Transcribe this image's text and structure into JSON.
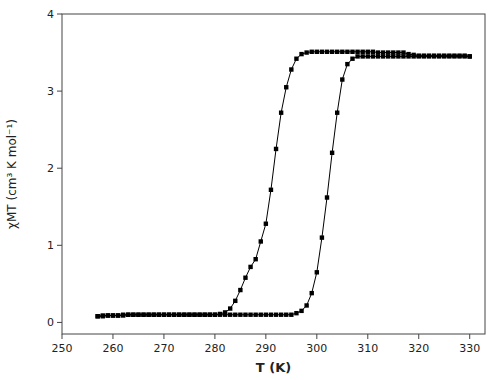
{
  "chart_data": {
    "type": "line",
    "title": "",
    "xlabel": "T (K)",
    "ylabel": "χMT (cm³ K mol⁻¹)",
    "xlim": [
      250,
      333
    ],
    "ylim": [
      -0.15,
      4.0
    ],
    "xticks": [
      250,
      260,
      270,
      280,
      290,
      300,
      310,
      320,
      330
    ],
    "yticks": [
      0,
      1,
      2,
      3,
      4
    ],
    "grid": false,
    "series": [
      {
        "color": "#000000",
        "marker": "square",
        "x": [
          257,
          258,
          259,
          260,
          261,
          262,
          263,
          264,
          265,
          266,
          267,
          268,
          269,
          270,
          271,
          272,
          273,
          274,
          275,
          276,
          277,
          278,
          279,
          280,
          281,
          282,
          283,
          284,
          285,
          286,
          287,
          288,
          289,
          290,
          291,
          292,
          293,
          294,
          295,
          296,
          297,
          298,
          299,
          300,
          301,
          302,
          303,
          304,
          305,
          306,
          307,
          308,
          309,
          310,
          311,
          312,
          313,
          314,
          315,
          316,
          317,
          318,
          319,
          320,
          321,
          322,
          323,
          324,
          325,
          326,
          327,
          328,
          329,
          330
        ],
        "values": [
          0.08,
          0.09,
          0.09,
          0.09,
          0.09,
          0.1,
          0.1,
          0.1,
          0.1,
          0.1,
          0.1,
          0.1,
          0.1,
          0.1,
          0.1,
          0.1,
          0.1,
          0.1,
          0.1,
          0.1,
          0.1,
          0.1,
          0.1,
          0.1,
          0.11,
          0.13,
          0.18,
          0.28,
          0.42,
          0.58,
          0.72,
          0.82,
          1.05,
          1.28,
          1.72,
          2.25,
          2.72,
          3.05,
          3.28,
          3.42,
          3.48,
          3.5,
          3.51,
          3.51,
          3.51,
          3.51,
          3.51,
          3.51,
          3.51,
          3.51,
          3.51,
          3.51,
          3.51,
          3.51,
          3.51,
          3.5,
          3.5,
          3.5,
          3.5,
          3.5,
          3.5,
          3.48,
          3.47,
          3.46,
          3.46,
          3.46,
          3.46,
          3.46,
          3.46,
          3.46,
          3.46,
          3.46,
          3.46,
          3.45
        ]
      },
      {
        "color": "#000000",
        "marker": "square",
        "x": [
          330,
          329,
          328,
          327,
          326,
          325,
          324,
          323,
          322,
          321,
          320,
          319,
          318,
          317,
          316,
          315,
          314,
          313,
          312,
          311,
          310,
          309,
          308,
          307,
          306,
          305,
          304,
          303,
          302,
          301,
          300,
          299,
          298,
          297,
          296,
          295,
          294,
          293,
          292,
          291,
          290,
          289,
          288,
          287,
          286,
          285,
          284,
          283,
          282,
          281,
          280,
          279,
          278,
          277,
          276,
          275,
          274,
          273,
          272,
          271,
          270,
          269,
          268,
          267,
          266,
          265,
          264,
          263,
          262,
          261,
          260,
          259,
          258,
          257
        ],
        "values": [
          3.45,
          3.45,
          3.45,
          3.45,
          3.45,
          3.45,
          3.45,
          3.45,
          3.45,
          3.45,
          3.45,
          3.45,
          3.45,
          3.45,
          3.45,
          3.45,
          3.45,
          3.45,
          3.45,
          3.45,
          3.45,
          3.45,
          3.45,
          3.42,
          3.35,
          3.15,
          2.72,
          2.2,
          1.62,
          1.1,
          0.65,
          0.38,
          0.22,
          0.15,
          0.12,
          0.1,
          0.1,
          0.1,
          0.1,
          0.1,
          0.1,
          0.1,
          0.1,
          0.1,
          0.1,
          0.1,
          0.1,
          0.1,
          0.1,
          0.1,
          0.1,
          0.1,
          0.1,
          0.1,
          0.1,
          0.1,
          0.1,
          0.1,
          0.1,
          0.1,
          0.1,
          0.1,
          0.1,
          0.1,
          0.1,
          0.1,
          0.1,
          0.1,
          0.09,
          0.09,
          0.09,
          0.09,
          0.08,
          0.08
        ]
      }
    ]
  }
}
